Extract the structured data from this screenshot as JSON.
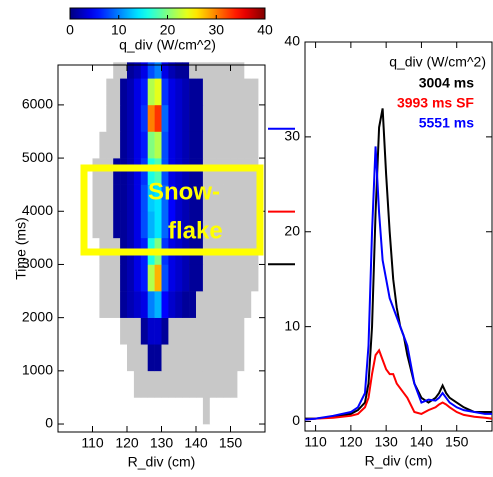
{
  "chart_data": [
    {
      "type": "heatmap",
      "xlabel": "R_div (cm)",
      "ylabel": "Time (ms)",
      "colorbar_label": "q_div (W/cm^2)",
      "clim": [
        0,
        40
      ],
      "cticks": [
        0,
        10,
        20,
        30,
        40
      ],
      "xlim": [
        100,
        160
      ],
      "xticks": [
        110,
        120,
        130,
        140,
        150
      ],
      "ylim": [
        -150,
        6750
      ],
      "yticks": [
        0,
        1000,
        2000,
        3000,
        4000,
        5000,
        6000
      ],
      "xbins": [
        110,
        112,
        114,
        116,
        118,
        120,
        122,
        124,
        126,
        128,
        130,
        132,
        134,
        136,
        138,
        140,
        142,
        144,
        146,
        148,
        150,
        152,
        154,
        156,
        158
      ],
      "ybins": [
        0,
        500,
        1000,
        1500,
        2000,
        2500,
        3000,
        3500,
        4000,
        4500,
        5000,
        5500,
        6000,
        6500,
        6800
      ],
      "z": [
        [
          0,
          0,
          0,
          0,
          0,
          0,
          0,
          0,
          0,
          0,
          0,
          0,
          0,
          0,
          0,
          0,
          0.5,
          0,
          0,
          0,
          0,
          0,
          0,
          0
        ],
        [
          0,
          0,
          0,
          0,
          0,
          0,
          0.5,
          0.5,
          0.5,
          0.5,
          0.5,
          0.5,
          0.5,
          0.5,
          0.5,
          0.5,
          0.5,
          0.5,
          0.5,
          0.5,
          0.5,
          0,
          0,
          0
        ],
        [
          0,
          0,
          0,
          0,
          0,
          0.5,
          0.5,
          0.5,
          1,
          1,
          0.5,
          0.5,
          0.5,
          0.5,
          0.5,
          0.5,
          0.5,
          0.5,
          0.5,
          0.5,
          0.5,
          0.5,
          0,
          0
        ],
        [
          0,
          0,
          0,
          0,
          0.5,
          0.5,
          0.5,
          1,
          3,
          3,
          1,
          0.5,
          0.5,
          0.5,
          0.5,
          0.5,
          0.5,
          0.5,
          0.5,
          0.5,
          0.5,
          0.5,
          0,
          0
        ],
        [
          0,
          0.5,
          0.5,
          0.5,
          1,
          2,
          3,
          4,
          10,
          12,
          5,
          3,
          2,
          1,
          1,
          0.5,
          0.5,
          0.5,
          0.5,
          0.5,
          0.5,
          0.5,
          0.5,
          0
        ],
        [
          0,
          0.5,
          0.5,
          0.5,
          1,
          2,
          4,
          6,
          22,
          28,
          8,
          4,
          3,
          2,
          1,
          1,
          0.5,
          0.5,
          0.5,
          0.5,
          0.5,
          0.5,
          0.5,
          0.5
        ],
        [
          0,
          0.5,
          0.5,
          0.5,
          1,
          2,
          4,
          6,
          16,
          20,
          7,
          4,
          3,
          2,
          1,
          1,
          0.5,
          0.5,
          0.5,
          0.5,
          0.5,
          0.5,
          0.5,
          0.5
        ],
        [
          0.5,
          0.5,
          0.5,
          1,
          1,
          2,
          4,
          8,
          12,
          14,
          9,
          5,
          3,
          2,
          1,
          1,
          0.5,
          0.5,
          0.5,
          0.5,
          0.5,
          0.5,
          0.5,
          0.5
        ],
        [
          0.5,
          0.5,
          0.5,
          1,
          1,
          2,
          4,
          8,
          13,
          14,
          9,
          5,
          3,
          2,
          1,
          1,
          0.5,
          0.5,
          0.5,
          0.5,
          0.5,
          0.5,
          0.5,
          0.5
        ],
        [
          0.5,
          0.5,
          0.5,
          1,
          1,
          2,
          4,
          7,
          16,
          18,
          8,
          4,
          3,
          2,
          1,
          1,
          0.5,
          0.5,
          0.5,
          0.5,
          0.5,
          0.5,
          0.5,
          0.5
        ],
        [
          0,
          0.5,
          0.5,
          0.5,
          1,
          2,
          4,
          6,
          20,
          22,
          8,
          4,
          3,
          2,
          1,
          1,
          0.5,
          0.5,
          0.5,
          0.5,
          0.5,
          0.5,
          0.5,
          0.5
        ],
        [
          0,
          0,
          0.5,
          0.5,
          1,
          2,
          4,
          7,
          30,
          33,
          9,
          4,
          3,
          2,
          1,
          1,
          0.5,
          0.5,
          0.5,
          0.5,
          0.5,
          0.5,
          0.5,
          0.5
        ],
        [
          0,
          0,
          0.5,
          0.5,
          1,
          2,
          4,
          6,
          22,
          24,
          7,
          4,
          3,
          2,
          1,
          1,
          0.5,
          0.5,
          0.5,
          0.5,
          0.5,
          0.5,
          0.5,
          0.5
        ],
        [
          0,
          0,
          0,
          0.5,
          0.5,
          1,
          2,
          4,
          8,
          10,
          4,
          2,
          1,
          1,
          0.5,
          0.5,
          0.5,
          0.5,
          0.5,
          0.5,
          0.5,
          0.5,
          0,
          0
        ]
      ],
      "annotation": [
        "Snow-",
        "flake"
      ]
    },
    {
      "type": "line",
      "xlabel": "R_div (cm)",
      "legend_title": "q_div (W/cm^2)",
      "legend": "upper right",
      "xlim": [
        107,
        160
      ],
      "xticks": [
        110,
        120,
        130,
        140,
        150
      ],
      "ylim": [
        -1,
        40
      ],
      "yticks": [
        0,
        10,
        20,
        30,
        40
      ],
      "x": [
        107,
        110,
        115,
        120,
        122,
        124,
        125,
        126,
        127,
        128,
        129,
        130,
        131,
        132,
        133,
        134,
        135,
        136,
        138,
        140,
        142,
        144,
        145,
        146,
        147,
        148,
        150,
        152,
        155,
        158,
        160
      ],
      "series": [
        {
          "name": "3004 ms",
          "time": 3004,
          "color": "#000000",
          "values": [
            0.3,
            0.3,
            0.5,
            0.8,
            1.2,
            2,
            4,
            10,
            22,
            31,
            33,
            26,
            20,
            15,
            12,
            10,
            9,
            7,
            4,
            2.5,
            2,
            2.5,
            3,
            3.8,
            3,
            2.5,
            2,
            1.5,
            1,
            1,
            1
          ]
        },
        {
          "name": "3993 ms SF",
          "time": 3993,
          "color": "#ff0000",
          "values": [
            0.2,
            0.3,
            0.4,
            0.6,
            0.8,
            1.5,
            2.5,
            5,
            7,
            7.5,
            6.5,
            5.5,
            5,
            5,
            4,
            3.5,
            3,
            2.5,
            1,
            0.8,
            1.2,
            1.5,
            1.8,
            2,
            1.8,
            1.5,
            1,
            0.7,
            0.5,
            0.4,
            0.3
          ]
        },
        {
          "name": "5551 ms",
          "time": 5551,
          "color": "#0000ff",
          "values": [
            0.2,
            0.3,
            0.6,
            1,
            1.5,
            3,
            8,
            20,
            29,
            22,
            17,
            15,
            13,
            12,
            11,
            10,
            9,
            8,
            4,
            2,
            2.3,
            2.2,
            2.5,
            3,
            2.5,
            2,
            1.5,
            1.2,
            1,
            0.8,
            0.8
          ]
        }
      ]
    }
  ]
}
